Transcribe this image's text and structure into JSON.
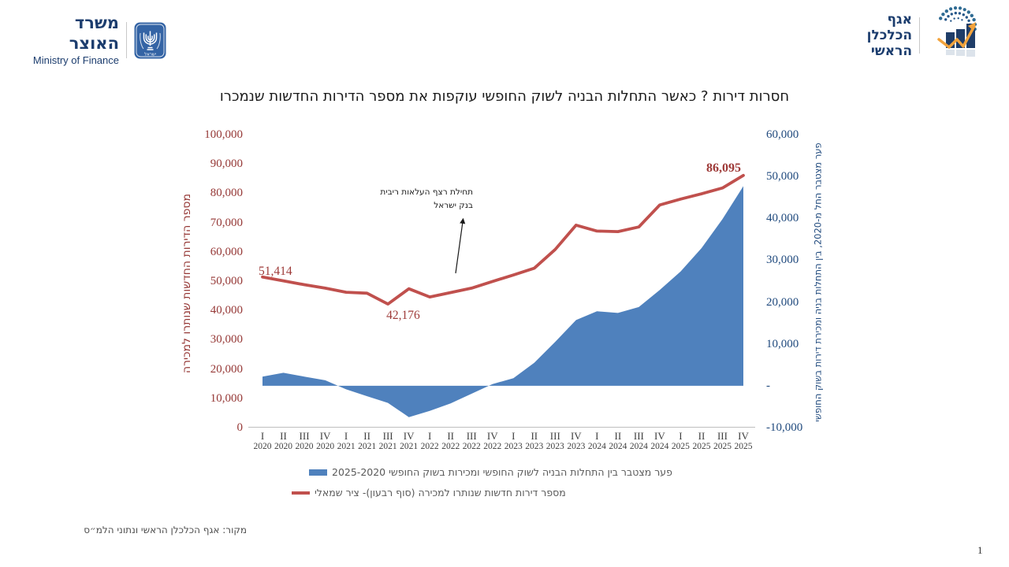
{
  "header": {
    "ministry_name_he": "משרד האוצר",
    "ministry_name_en": "Ministry of Finance",
    "division_line1": "אגף",
    "division_line2": "הכלכלן הראשי"
  },
  "icons": {
    "state_emblem": "israel-state-emblem-icon",
    "division_logo": "chief-economist-chart-arrow-icon"
  },
  "title": "חסרות דירות ? כאשר התחלות הבניה לשוק החופשי עוקפות את מספר הדירות החדשות שנמכרו",
  "chart_data": {
    "type": "combo",
    "subtypes": [
      "area",
      "line"
    ],
    "gridlines": false,
    "legend_position": "bottom",
    "categories": [
      "I 2020",
      "II 2020",
      "III 2020",
      "IV 2020",
      "I 2021",
      "II 2021",
      "III 2021",
      "IV 2021",
      "I 2022",
      "II 2022",
      "III 2022",
      "IV 2022",
      "I 2023",
      "II 2023",
      "III 2023",
      "IV 2023",
      "I 2024",
      "II 2024",
      "III 2024",
      "IV 2024",
      "I 2025",
      "II 2025",
      "III 2025",
      "IV 2025"
    ],
    "x_axis": {
      "quarters": [
        "I",
        "II",
        "III",
        "IV",
        "I",
        "II",
        "III",
        "IV",
        "I",
        "II",
        "III",
        "IV",
        "I",
        "II",
        "III",
        "IV",
        "I",
        "II",
        "III",
        "IV",
        "I",
        "II",
        "III",
        "IV"
      ],
      "years": [
        "2020",
        "2020",
        "2020",
        "2020",
        "2021",
        "2021",
        "2021",
        "2021",
        "2022",
        "2022",
        "2022",
        "2022",
        "2023",
        "2023",
        "2023",
        "2023",
        "2024",
        "2024",
        "2024",
        "2024",
        "2025",
        "2025",
        "2025",
        "2025"
      ]
    },
    "series": [
      {
        "name": "פער מצטבר בין התחלות הבניה לשוק החופשי  ומכירות בשוק החופשי 2025-2020",
        "type": "area",
        "axis": "right",
        "color": "#4F81BD",
        "values": [
          2200,
          3100,
          2200,
          1300,
          -850,
          -2500,
          -4100,
          -7500,
          -6000,
          -4200,
          -1900,
          400,
          1800,
          5500,
          10500,
          15700,
          17800,
          17400,
          18800,
          22900,
          27300,
          32900,
          39800,
          47700
        ]
      },
      {
        "name": "מספר דירות חדשות שנותרו למכירה (סוף רבעון)- ציר שמאלי",
        "type": "line",
        "axis": "left",
        "color": "#C0504D",
        "values": [
          51414,
          50100,
          48800,
          47600,
          46200,
          45900,
          42176,
          47400,
          44600,
          46100,
          47600,
          49900,
          52100,
          54400,
          60800,
          69100,
          67100,
          66900,
          68500,
          76000,
          78000,
          79800,
          81800,
          86095
        ]
      }
    ],
    "left_axis": {
      "title": "מספר הדירות החדשות שנותרו למכירה",
      "min": 0,
      "max": 100000,
      "tick_labels": [
        "100,000",
        "90,000",
        "80,000",
        "70,000",
        "60,000",
        "50,000",
        "40,000",
        "30,000",
        "20,000",
        "10,000",
        "0"
      ],
      "color": "#953735"
    },
    "right_axis": {
      "title": "פער מצטבר החל מ-2020, בין התחלות בניה ומכירת דירות בשוק החופשי",
      "min": -10000,
      "max": 60000,
      "tick_labels": [
        "60,000",
        "50,000",
        "40,000",
        "30,000",
        "20,000",
        "10,000",
        "-",
        "-10,000"
      ],
      "color": "#1F497D"
    },
    "point_labels": [
      {
        "index": 0,
        "text": "51,414",
        "bold": false
      },
      {
        "index": 6,
        "text": "42,176",
        "bold": false
      },
      {
        "index": 23,
        "text": "86,095",
        "bold": true
      }
    ],
    "annotation": {
      "line1": "תחילת רצף העלאות ריבית",
      "line2": "בנק ישראל"
    }
  },
  "source_note": "מקור: אגף הכלכלן הראשי ונתוני הלמ״ס",
  "page_number": "1"
}
